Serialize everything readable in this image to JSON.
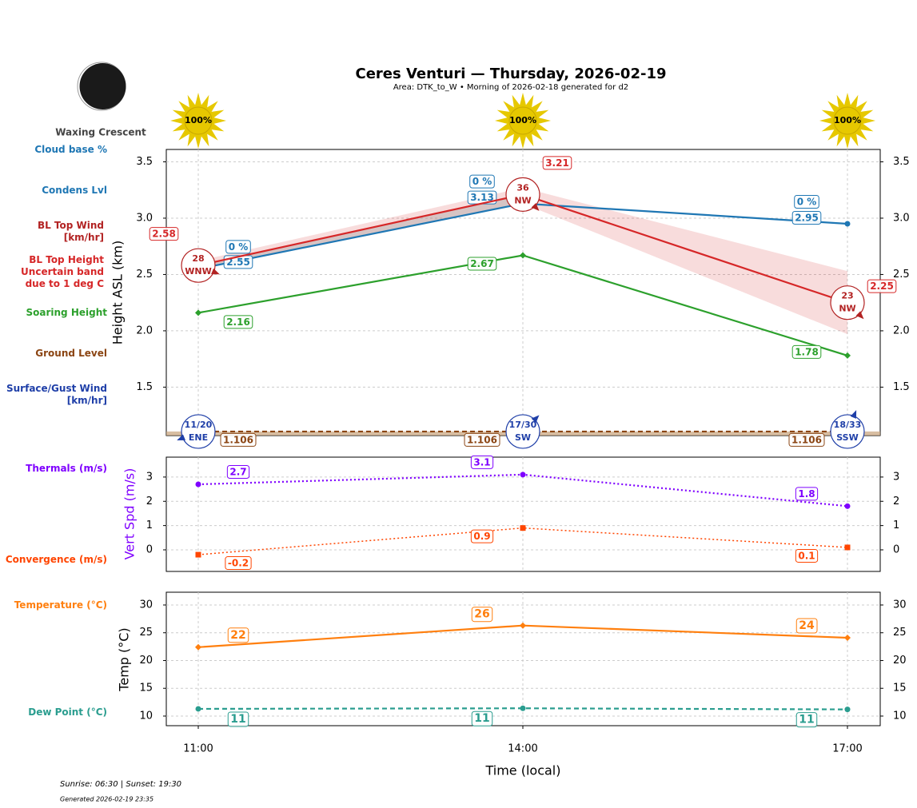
{
  "title": "Ceres Venturi — Thursday, 2026-02-19",
  "subtitle": "Area: DTK_to_W • Morning of 2026-02-18 generated for d2",
  "moon": {
    "phase": "Waxing Crescent"
  },
  "footer": {
    "sun_times": "Sunrise: 06:30 | Sunset: 19:30",
    "generated": "Generated 2026-02-19 23:35"
  },
  "chart_data": [
    {
      "type": "line",
      "ylabel": "Height ASL (km)",
      "ylim": [
        1.07,
        3.61
      ],
      "yticks": [
        {
          "value": 1.5,
          "label": "1.5"
        },
        {
          "value": 2.0,
          "label": "2.0"
        },
        {
          "value": 2.5,
          "label": "2.5"
        },
        {
          "value": 3.0,
          "label": "3.0"
        },
        {
          "value": 3.5,
          "label": "3.5"
        }
      ],
      "grid": true,
      "sunshine": {
        "values": [
          100,
          100,
          100
        ],
        "value_labels": [
          "100%",
          "100%",
          "100%"
        ]
      },
      "series": [
        {
          "name": "Cloud base %",
          "color": "#1f77b4",
          "values": [
            0,
            0,
            0
          ],
          "value_labels": [
            "0 %",
            "0 %",
            "0 %"
          ],
          "line_style": "none",
          "marker": "none"
        },
        {
          "name": "Condens Lvl",
          "color": "#1f77b4",
          "values": [
            2.55,
            3.13,
            2.95
          ],
          "line_style": "solid",
          "marker": "circle"
        },
        {
          "name": "BL Top Wind\n[km/hr]",
          "color": "#b22222",
          "values": [
            28,
            36,
            23
          ],
          "directions": [
            "WNW",
            "NW",
            "NW"
          ],
          "bearings": [
            292.5,
            315,
            315
          ],
          "line_style": "none",
          "marker": "none"
        },
        {
          "name": "BL Top Height\nUncertain band\ndue to 1 deg C",
          "color": "#d62728",
          "values": [
            2.58,
            3.21,
            2.25
          ],
          "band_low": [
            2.55,
            3.13,
            1.97
          ],
          "band_high": [
            2.62,
            3.27,
            2.53
          ],
          "line_style": "solid",
          "marker": "none"
        },
        {
          "name": "Soaring Height",
          "color": "#2ca02c",
          "values": [
            2.16,
            2.67,
            1.78
          ],
          "line_style": "solid",
          "marker": "diamond"
        },
        {
          "name": "Ground Level",
          "color": "#8b4513",
          "values": [
            1.106,
            1.106,
            1.106
          ],
          "line_style": "dashed",
          "marker": "none"
        },
        {
          "name": "Surface/Gust Wind\n[km/hr]",
          "color": "#1f3fa8",
          "values": [
            11,
            17,
            18
          ],
          "value_labels": [
            "11/20",
            "17/30",
            "18/33"
          ],
          "directions": [
            "ENE",
            "SW",
            "SSW"
          ],
          "bearings": [
            67.5,
            225,
            202.5
          ],
          "line_style": "none",
          "marker": "none"
        }
      ]
    },
    {
      "type": "line",
      "ylabel": "Vert Spd (m/s)",
      "ylabel_color": "#7f00ff",
      "ylim": [
        -0.89,
        3.82
      ],
      "yticks": [
        0,
        1,
        2,
        3
      ],
      "grid": true,
      "series": [
        {
          "name": "Thermals (m/s)",
          "color": "#7f00ff",
          "values": [
            2.7,
            3.1,
            1.8
          ],
          "line_style": "dotted",
          "marker": "circle"
        },
        {
          "name": "Convergence (m/s)",
          "color": "#ff4500",
          "values": [
            -0.2,
            0.9,
            0.1
          ],
          "line_style": "dotted",
          "marker": "square"
        }
      ]
    },
    {
      "type": "line",
      "ylabel": "Temp (°C)",
      "xlabel": "Time (local)",
      "categories": [
        "11:00",
        "14:00",
        "17:00"
      ],
      "ylim": [
        8.27,
        32.3
      ],
      "yticks": [
        10,
        15,
        20,
        25,
        30
      ],
      "grid": true,
      "series": [
        {
          "name": "Temperature (°C)",
          "color": "#ff7f0e",
          "values": [
            22.4,
            26.3,
            24.1
          ],
          "value_labels": [
            "22",
            "26",
            "24"
          ],
          "line_style": "solid",
          "marker": "diamond"
        },
        {
          "name": "Dew Point (°C)",
          "color": "#2a9d8f",
          "values": [
            11.3,
            11.4,
            11.2
          ],
          "value_labels": [
            "11",
            "11",
            "11"
          ],
          "line_style": "dashed",
          "marker": "circle"
        }
      ]
    }
  ]
}
